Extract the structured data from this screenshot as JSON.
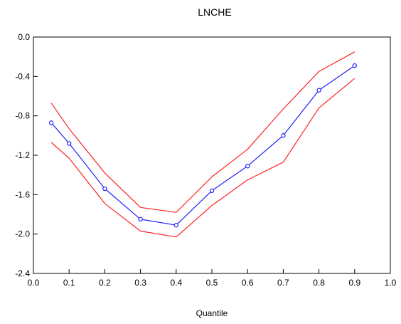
{
  "chart_data": {
    "type": "line",
    "title": "LNCHE",
    "xlabel": "Quantile",
    "ylabel": "",
    "xlim": [
      0.0,
      1.0
    ],
    "ylim": [
      -2.4,
      0.0
    ],
    "xticks": [
      "0.0",
      "0.1",
      "0.2",
      "0.3",
      "0.4",
      "0.5",
      "0.6",
      "0.7",
      "0.8",
      "0.9",
      "1.0"
    ],
    "yticks": [
      "0.0",
      "-0.4",
      "-0.8",
      "-1.2",
      "-1.6",
      "-2.0",
      "-2.4"
    ],
    "grid": false,
    "legend": "none",
    "x": [
      0.05,
      0.1,
      0.2,
      0.3,
      0.4,
      0.5,
      0.6,
      0.7,
      0.8,
      0.9
    ],
    "series": [
      {
        "color": "#ff2020",
        "markers": false,
        "values": [
          -0.67,
          -0.93,
          -1.38,
          -1.73,
          -1.78,
          -1.42,
          -1.14,
          -0.73,
          -0.35,
          -0.15
        ]
      },
      {
        "color": "#2020ff",
        "markers": true,
        "values": [
          -0.87,
          -1.08,
          -1.54,
          -1.85,
          -1.91,
          -1.56,
          -1.31,
          -1.0,
          -0.54,
          -0.29
        ]
      },
      {
        "color": "#ff2020",
        "markers": false,
        "values": [
          -1.07,
          -1.23,
          -1.69,
          -1.97,
          -2.03,
          -1.71,
          -1.45,
          -1.27,
          -0.72,
          -0.42
        ]
      }
    ]
  }
}
